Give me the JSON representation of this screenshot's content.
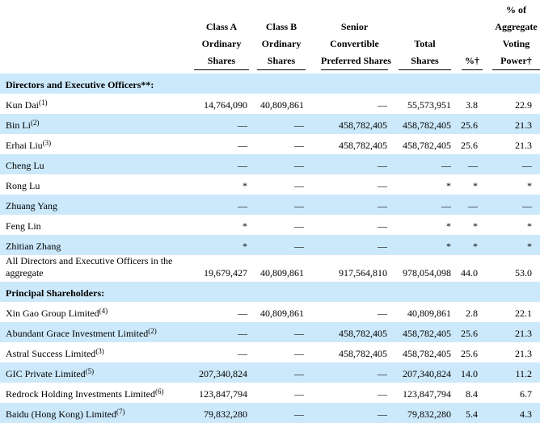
{
  "colors": {
    "stripe": "#cce9fb",
    "text": "#000000",
    "rule": "#000000"
  },
  "table": {
    "columns": [
      {
        "id": "name",
        "lines": []
      },
      {
        "id": "class_a",
        "lines": [
          "Class A",
          "Ordinary",
          "Shares"
        ]
      },
      {
        "id": "class_b",
        "lines": [
          "Class B",
          "Ordinary",
          "Shares"
        ]
      },
      {
        "id": "preferred",
        "lines": [
          "Senior",
          "Convertible",
          "Preferred Shares"
        ]
      },
      {
        "id": "total",
        "lines": [
          "Total",
          "Shares"
        ]
      },
      {
        "id": "pct",
        "lines": [
          "%†"
        ]
      },
      {
        "id": "voting",
        "lines": [
          "% of",
          "Aggregate",
          "Voting",
          "Power†"
        ]
      }
    ],
    "rows": [
      {
        "type": "section",
        "label": "Directors and Executive Officers**:"
      },
      {
        "type": "data",
        "label": "Kun Dai",
        "footnote": "(1)",
        "values": [
          "14,764,090",
          "40,809,861",
          "—",
          "55,573,951",
          "3.8",
          "22.9"
        ]
      },
      {
        "type": "data",
        "label": "Bin Li",
        "footnote": "(2)",
        "values": [
          "—",
          "—",
          "458,782,405",
          "458,782,405",
          "25.6",
          "21.3"
        ]
      },
      {
        "type": "data",
        "label": "Erhai Liu",
        "footnote": "(3)",
        "values": [
          "—",
          "—",
          "458,782,405",
          "458,782,405",
          "25.6",
          "21.3"
        ]
      },
      {
        "type": "data",
        "label": "Cheng Lu",
        "footnote": "",
        "values": [
          "—",
          "—",
          "—",
          "—",
          "—",
          "—"
        ]
      },
      {
        "type": "data",
        "label": "Rong Lu",
        "footnote": "",
        "values": [
          "*",
          "—",
          "—",
          "*",
          "*",
          "*"
        ]
      },
      {
        "type": "data",
        "label": "Zhuang Yang",
        "footnote": "",
        "values": [
          "—",
          "—",
          "—",
          "—",
          "—",
          "—"
        ]
      },
      {
        "type": "data",
        "label": "Feng Lin",
        "footnote": "",
        "values": [
          "*",
          "—",
          "—",
          "*",
          "*",
          "*"
        ]
      },
      {
        "type": "data",
        "label": "Zhitian Zhang",
        "footnote": "",
        "values": [
          "*",
          "—",
          "—",
          "*",
          "*",
          "*"
        ]
      },
      {
        "type": "data",
        "label": "All Directors and Executive Officers in the aggregate",
        "footnote": "",
        "values": [
          "19,679,427",
          "40,809,861",
          "917,564,810",
          "978,054,098",
          "44.0",
          "53.0"
        ]
      },
      {
        "type": "section",
        "label": "Principal Shareholders:"
      },
      {
        "type": "data",
        "label": "Xin Gao Group Limited",
        "footnote": "(4)",
        "values": [
          "—",
          "40,809,861",
          "—",
          "40,809,861",
          "2.8",
          "22.1"
        ]
      },
      {
        "type": "data",
        "label": "Abundant Grace Investment Limited",
        "footnote": "(2)",
        "values": [
          "—",
          "—",
          "458,782,405",
          "458,782,405",
          "25.6",
          "21.3"
        ]
      },
      {
        "type": "data",
        "label": "Astral Success Limited",
        "footnote": "(3)",
        "values": [
          "—",
          "—",
          "458,782,405",
          "458,782,405",
          "25.6",
          "21.3"
        ]
      },
      {
        "type": "data",
        "label": "GIC Private Limited",
        "footnote": "(5)",
        "values": [
          "207,340,824",
          "—",
          "—",
          "207,340,824",
          "14.0",
          "11.2"
        ]
      },
      {
        "type": "data",
        "label": "Redrock Holding Investments Limited",
        "footnote": "(6)",
        "values": [
          "123,847,794",
          "—",
          "—",
          "123,847,794",
          "8.4",
          "6.7"
        ]
      },
      {
        "type": "data",
        "label": "Baidu (Hong Kong) Limited",
        "footnote": "(7)",
        "values": [
          "79,832,280",
          "—",
          "—",
          "79,832,280",
          "5.4",
          "4.3"
        ]
      }
    ]
  }
}
